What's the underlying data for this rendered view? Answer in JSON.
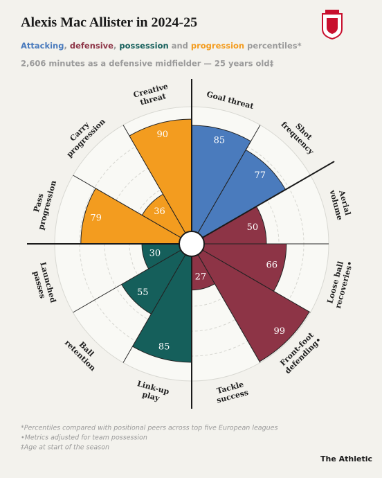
{
  "chart_data": {
    "type": "pizza",
    "title": "Alexis Mac Allister in 2024-25",
    "subtitle_joins": [
      ", ",
      ", ",
      " and ",
      " percentiles*"
    ],
    "description": "2,606 minutes as a defensive midfielder — 25 years old‡",
    "rlim": [
      0,
      100
    ],
    "rticks": [
      20,
      40,
      60,
      80
    ],
    "series": [
      {
        "name": "Attacking",
        "color": "#4a7bbd",
        "categories": [
          [
            "Goal threat"
          ],
          [
            "Shot",
            "frequency"
          ]
        ],
        "values": [
          85,
          77
        ]
      },
      {
        "name": "defensive",
        "color": "#8d3446",
        "categories": [
          [
            "Aerial",
            "volume"
          ],
          [
            "Loose ball",
            "recoveries•"
          ],
          [
            "Front-foot",
            "defending•"
          ],
          [
            "Tackle",
            "success"
          ]
        ],
        "values": [
          50,
          66,
          99,
          27
        ]
      },
      {
        "name": "possession",
        "color": "#155f5b",
        "categories": [
          [
            "Link-up",
            "play"
          ],
          [
            "Ball",
            "retention"
          ],
          [
            "Launched",
            "passes"
          ]
        ],
        "values": [
          85,
          55,
          30
        ]
      },
      {
        "name": "progression",
        "color": "#f39c1f",
        "categories": [
          [
            "Pass",
            "progression"
          ],
          [
            "Carry",
            "progression"
          ],
          [
            "Creative",
            "threat"
          ]
        ],
        "values": [
          79,
          36,
          90
        ]
      }
    ],
    "footnotes": [
      "*Percentiles compared with positional peers across top five European leagues",
      "•Metrics adjusted for team possession",
      "‡Age at start of the season"
    ],
    "source": "The Athletic"
  }
}
